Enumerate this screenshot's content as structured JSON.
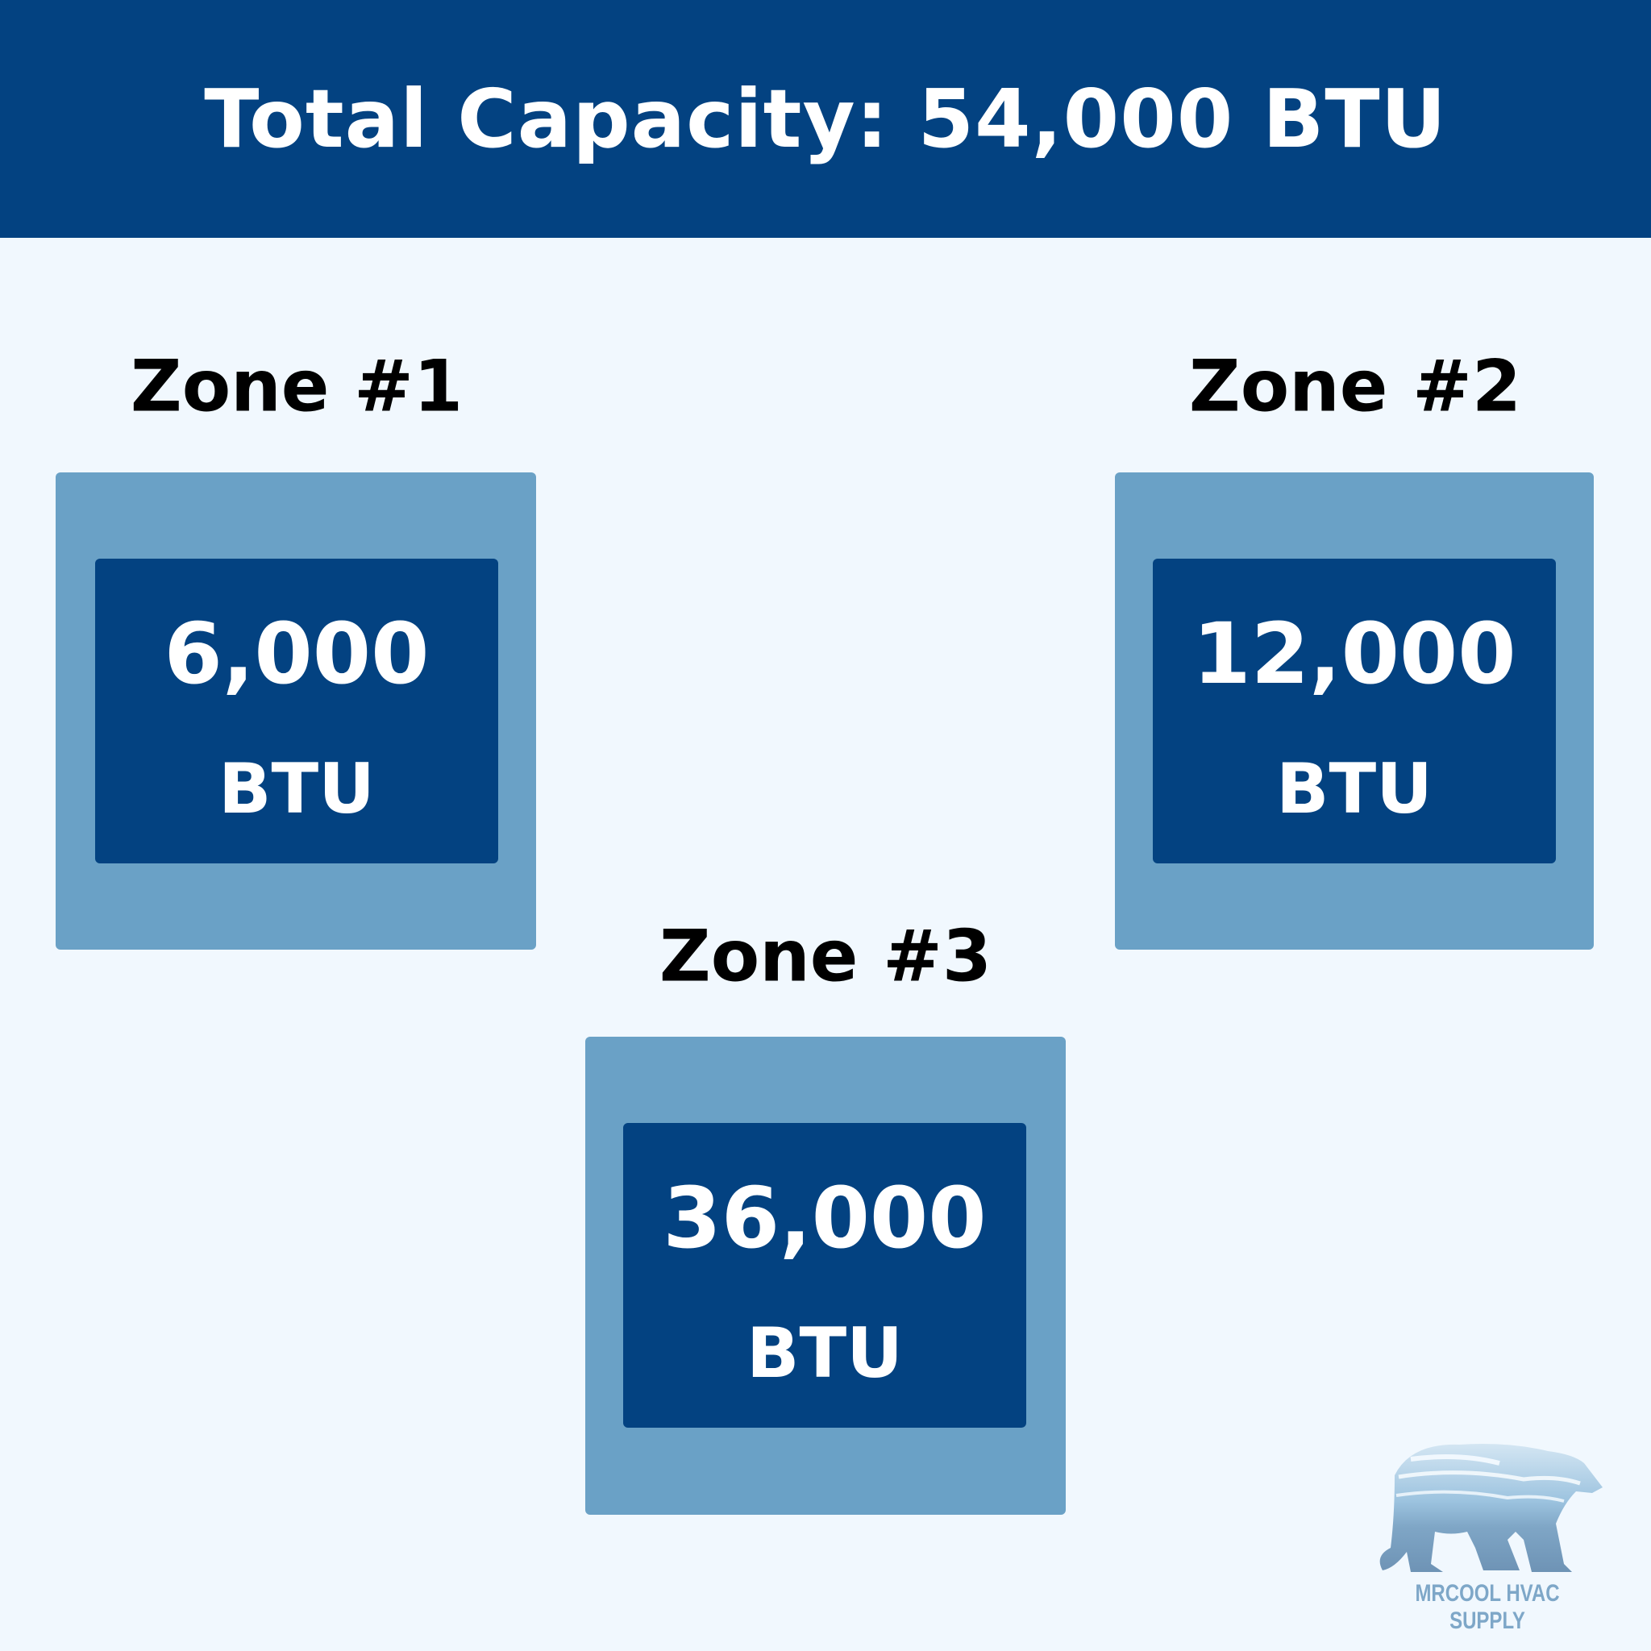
{
  "header": {
    "title": "Total Capacity: 54,000 BTU"
  },
  "zones": [
    {
      "label": "Zone #1",
      "value": "6,000",
      "unit": "BTU"
    },
    {
      "label": "Zone #2",
      "value": "12,000",
      "unit": "BTU"
    },
    {
      "label": "Zone #3",
      "value": "36,000",
      "unit": "BTU"
    }
  ],
  "logo": {
    "text": "MRCOOL HVAC SUPPLY",
    "icon": "polar-bear-icon"
  },
  "colors": {
    "header": "#034281",
    "card_outer": "#6aa1c6",
    "card_inner": "#034281",
    "background": "#f1f8fe"
  }
}
